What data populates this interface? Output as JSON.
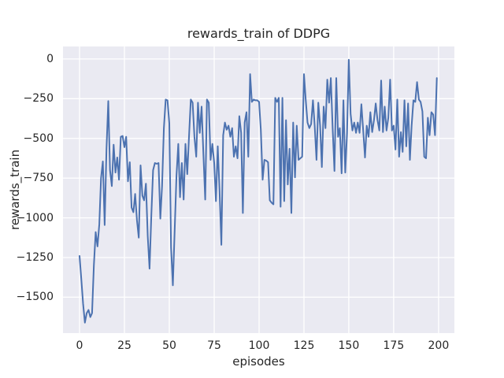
{
  "chart_data": {
    "type": "line",
    "title": "rewards_train of DDPG",
    "xlabel": "episodes",
    "ylabel": "rewards_train",
    "legend": "none",
    "grid": true,
    "background_color": "#eaeaf2",
    "grid_color": "#ffffff",
    "line_color": "#4c72b0",
    "text_color": "#262626",
    "xlim": [
      -9.2,
      208.8
    ],
    "ylim": [
      -1726,
      79
    ],
    "x_ticks": [
      0,
      25,
      50,
      75,
      100,
      125,
      150,
      175,
      200
    ],
    "x_tick_labels": [
      "0",
      "25",
      "50",
      "75",
      "100",
      "125",
      "150",
      "175",
      "200"
    ],
    "y_ticks": [
      0,
      -250,
      -500,
      -750,
      -1000,
      -1250,
      -1500
    ],
    "y_tick_labels": [
      "0",
      "−250",
      "−500",
      "−750",
      "−1000",
      "−1250",
      "−1500"
    ],
    "series": [
      {
        "name": "rewards_train",
        "x_start": 0,
        "x_step": 1,
        "y": [
          -1240,
          -1390,
          -1540,
          -1660,
          -1600,
          -1580,
          -1625,
          -1600,
          -1300,
          -1090,
          -1180,
          -1040,
          -750,
          -645,
          -1045,
          -570,
          -265,
          -700,
          -800,
          -540,
          -715,
          -620,
          -760,
          -490,
          -485,
          -555,
          -490,
          -770,
          -650,
          -935,
          -965,
          -850,
          -1015,
          -1125,
          -670,
          -860,
          -890,
          -785,
          -1115,
          -1320,
          -980,
          -700,
          -655,
          -660,
          -655,
          -1005,
          -800,
          -435,
          -255,
          -260,
          -405,
          -1185,
          -1425,
          -1080,
          -735,
          -535,
          -870,
          -655,
          -885,
          -535,
          -725,
          -490,
          -255,
          -275,
          -490,
          -615,
          -275,
          -465,
          -300,
          -600,
          -885,
          -255,
          -275,
          -635,
          -535,
          -655,
          -895,
          -550,
          -830,
          -1170,
          -480,
          -400,
          -445,
          -420,
          -490,
          -435,
          -615,
          -550,
          -625,
          -360,
          -465,
          -970,
          -400,
          -335,
          -615,
          -95,
          -270,
          -255,
          -260,
          -260,
          -270,
          -445,
          -760,
          -635,
          -640,
          -650,
          -890,
          -905,
          -915,
          -245,
          -270,
          -245,
          -930,
          -245,
          -895,
          -385,
          -790,
          -565,
          -970,
          -400,
          -745,
          -420,
          -635,
          -625,
          -615,
          -95,
          -255,
          -400,
          -435,
          -410,
          -260,
          -420,
          -635,
          -275,
          -420,
          -680,
          -300,
          -435,
          -130,
          -275,
          -120,
          -435,
          -705,
          -120,
          -490,
          -435,
          -720,
          -260,
          -715,
          -465,
          -5,
          -345,
          -450,
          -400,
          -465,
          -400,
          -465,
          -285,
          -450,
          -620,
          -420,
          -490,
          -335,
          -460,
          -385,
          -280,
          -385,
          -450,
          -135,
          -460,
          -300,
          -450,
          -370,
          -130,
          -450,
          -420,
          -570,
          -255,
          -615,
          -460,
          -585,
          -260,
          -550,
          -280,
          -635,
          -420,
          -260,
          -270,
          -145,
          -255,
          -270,
          -330,
          -615,
          -625,
          -370,
          -480,
          -335,
          -350,
          -480,
          -120
        ]
      }
    ]
  }
}
